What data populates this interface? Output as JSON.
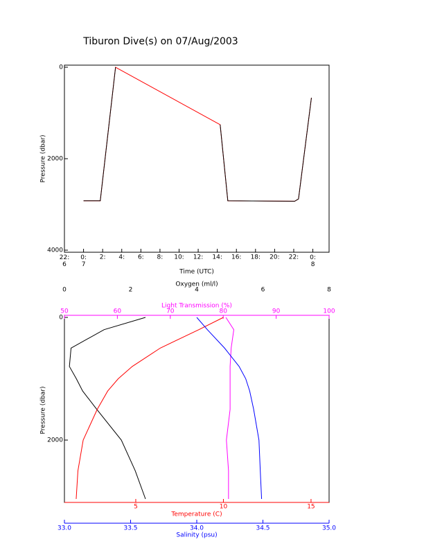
{
  "chart_data": [
    {
      "type": "line",
      "title": "Tiburon Dive(s) on 07/Aug/2003",
      "xlabel": "Time (UTC)",
      "ylabel": "Pressure (dbar)",
      "y_inverted": true,
      "x": [
        24,
        25.75,
        27.35,
        33,
        38.3,
        39.1,
        46.1,
        46.5,
        47.85
      ],
      "series": [
        {
          "color": "#ff0000",
          "values": [
            2920,
            2920,
            0,
            649,
            1257,
            2920,
            2930,
            2880,
            667
          ]
        },
        {
          "color": "#000000",
          "values": [
            2920,
            2920,
            0,
            null,
            1257,
            2920,
            2930,
            2880,
            667
          ]
        }
      ],
      "xlim": [
        22,
        49.7
      ],
      "xticks": [
        {
          "value": 22,
          "label": "22:\n6"
        },
        {
          "value": 24,
          "label": "0:\n7"
        },
        {
          "value": 26,
          "label": "2:"
        },
        {
          "value": 28,
          "label": "4:"
        },
        {
          "value": 30,
          "label": "6:"
        },
        {
          "value": 32,
          "label": "8:"
        },
        {
          "value": 34,
          "label": "10:"
        },
        {
          "value": 36,
          "label": "12:"
        },
        {
          "value": 38,
          "label": "14:"
        },
        {
          "value": 40,
          "label": "16:"
        },
        {
          "value": 42,
          "label": "18:"
        },
        {
          "value": 44,
          "label": "20:"
        },
        {
          "value": 46,
          "label": "22:"
        },
        {
          "value": 48,
          "label": "0:\n8"
        }
      ],
      "ylim": [
        0,
        4000
      ],
      "yticks": [
        0,
        2000,
        4000
      ]
    },
    {
      "type": "profile",
      "ylabel": "Pressure (dbar)",
      "y_inverted": true,
      "y": [
        0,
        200,
        500,
        800,
        1000,
        1200,
        1500,
        2000,
        2500,
        2960
      ],
      "ylim": [
        0,
        2960
      ],
      "yticks": [
        0,
        2000
      ],
      "axes": [
        {
          "label": "Oxygen (ml/l)",
          "color": "#000000",
          "lim": [
            0,
            8
          ],
          "ticks": [
            0,
            2,
            4,
            6,
            8
          ]
        },
        {
          "label": "Light Transmission (%)",
          "color": "#ff00ff",
          "lim": [
            50,
            100
          ],
          "ticks": [
            50,
            60,
            70,
            80,
            90,
            100
          ]
        },
        {
          "label": "Temperature (C)",
          "color": "#ff0000",
          "lim": [
            0.93,
            16.03
          ],
          "ticks": [
            5,
            10,
            15
          ]
        },
        {
          "label": "Salinity (psu)",
          "color": "#0000ff",
          "lim": [
            33,
            35
          ],
          "ticks": [
            {
              "value": 33,
              "label": "33.0"
            },
            {
              "value": 33.5,
              "label": "33.5"
            },
            {
              "value": 34,
              "label": "34.0"
            },
            {
              "value": 34.5,
              "label": "34.5"
            },
            {
              "value": 35,
              "label": "35.0"
            }
          ]
        }
      ],
      "series": [
        {
          "axis": 0,
          "color": "#000000",
          "values": [
            2.45,
            1.2,
            0.2,
            0.15,
            0.36,
            0.55,
            0.98,
            1.72,
            2.14,
            2.45
          ]
        },
        {
          "axis": 1,
          "color": "#ff00ff",
          "values": [
            80.5,
            82,
            81.5,
            81.3,
            81.3,
            81.3,
            81.3,
            80.6,
            81,
            81
          ]
        },
        {
          "axis": 2,
          "color": "#ff0000",
          "values": [
            10,
            8.6,
            6.4,
            4.8,
            4.0,
            3.4,
            2.8,
            2.0,
            1.7,
            1.6
          ]
        },
        {
          "axis": 3,
          "color": "#0000ff",
          "values": [
            34.0,
            34.08,
            34.21,
            34.32,
            34.37,
            34.4,
            34.43,
            34.47,
            34.48,
            34.49
          ]
        }
      ]
    }
  ]
}
